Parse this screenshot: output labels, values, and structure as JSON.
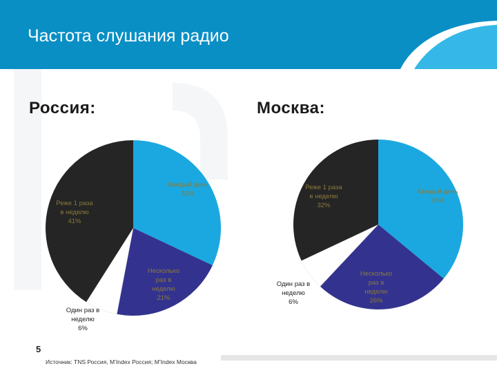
{
  "slide": {
    "title": "Частота слушания радио",
    "page_number": "5",
    "source": "Источник: TNS Россия, M’Index Россия; M’Index Москва"
  },
  "colors": {
    "header_dark": "#0a8fc5",
    "header_light": "#1fb0e4",
    "every_day": "#1ba8e0",
    "several_times": "#33338f",
    "once_week": "#ffffff",
    "less_than_once": "#252525",
    "label_text": "#8a7a3a"
  },
  "chart_data": [
    {
      "type": "pie",
      "title": "Россия:",
      "categories": [
        "Каждый день",
        "Несколько раз в неделю",
        "Один раз в неделю",
        "Реже 1 раза в неделю"
      ],
      "values": [
        32,
        21,
        6,
        41
      ],
      "labels": [
        "Каждый день 32%",
        "Несколько раз в неделю 21%",
        "Один раз в неделю 6%",
        "Реже 1 раза в неделю 41%"
      ]
    },
    {
      "type": "pie",
      "title": "Москва:",
      "categories": [
        "Каждый день",
        "Несколько раз в неделю",
        "Один раз в неделю",
        "Реже 1 раза в неделю"
      ],
      "values": [
        36,
        26,
        6,
        32
      ],
      "labels": [
        "Каждый день 36%",
        "Несколько раз в неделю 26%",
        "Один раз в неделю 6%",
        "Реже 1 раза в неделю 32%"
      ]
    }
  ]
}
